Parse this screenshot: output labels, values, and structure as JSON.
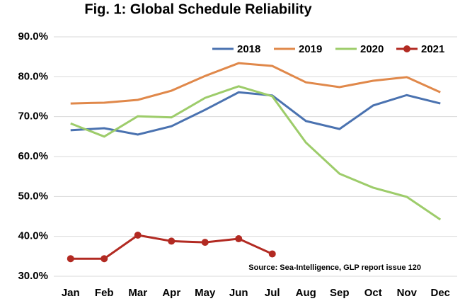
{
  "chart_data": {
    "type": "line",
    "title": "Fig. 1: Global Schedule Reliability",
    "annotation": "Source: Sea-Intelligence, GLP report issue 120",
    "categories": [
      "Jan",
      "Feb",
      "Mar",
      "Apr",
      "May",
      "Jun",
      "Jul",
      "Aug",
      "Sep",
      "Oct",
      "Nov",
      "Dec"
    ],
    "series": [
      {
        "name": "2018",
        "color": "#4a72b0",
        "values": [
          66.6,
          67.1,
          65.5,
          67.6,
          71.7,
          76.1,
          75.3,
          68.9,
          66.9,
          72.8,
          75.4,
          73.3
        ]
      },
      {
        "name": "2019",
        "color": "#e0884a",
        "values": [
          73.3,
          73.5,
          74.2,
          76.5,
          80.2,
          83.4,
          82.7,
          78.6,
          77.4,
          79.0,
          79.9,
          76.1
        ]
      },
      {
        "name": "2020",
        "color": "#9dcc6a",
        "values": [
          68.3,
          65.0,
          70.1,
          69.8,
          74.7,
          77.6,
          75.1,
          63.5,
          55.7,
          52.2,
          49.9,
          44.2
        ]
      },
      {
        "name": "2021",
        "color": "#b22a22",
        "markers": true,
        "values": [
          34.4,
          34.4,
          40.3,
          38.8,
          38.5,
          39.4,
          35.6,
          null,
          null,
          null,
          null,
          null
        ]
      }
    ],
    "ylim": [
      30,
      90
    ],
    "yticks": [
      {
        "value": 30,
        "label": "30.0%"
      },
      {
        "value": 40,
        "label": "40.0%"
      },
      {
        "value": 50,
        "label": "50.0%"
      },
      {
        "value": 60,
        "label": "60.0%"
      },
      {
        "value": 70,
        "label": "70.0%"
      },
      {
        "value": 80,
        "label": "80.0%"
      },
      {
        "value": 90,
        "label": "90.0%"
      }
    ],
    "grid": true,
    "legend": "top-right"
  }
}
